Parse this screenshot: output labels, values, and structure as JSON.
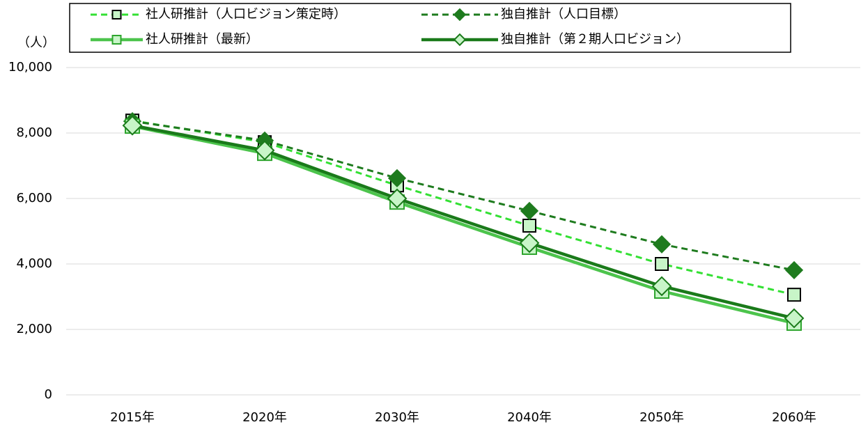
{
  "chart_data": {
    "type": "line",
    "y_label": "（人）",
    "categories": [
      "2015年",
      "2020年",
      "2030年",
      "2040年",
      "2050年",
      "2060年"
    ],
    "series": [
      {
        "name": "社人研推計（人口ビジョン策定時）",
        "color": "#33e033",
        "dash": true,
        "marker": "square",
        "marker_fill": "#c8f5c8",
        "marker_stroke": "#000000",
        "values": [
          8380,
          7720,
          6400,
          5170,
          4000,
          3060
        ]
      },
      {
        "name": "独自推計（人口目標）",
        "color": "#1e7b1e",
        "dash": true,
        "marker": "diamond",
        "marker_fill": "#1e7b1e",
        "marker_stroke": "#1e7b1e",
        "values": [
          8360,
          7770,
          6620,
          5620,
          4600,
          3810
        ]
      },
      {
        "name": "社人研推計（最新）",
        "color": "#4cc44c",
        "dash": false,
        "marker": "square",
        "marker_fill": "#c8f5c8",
        "marker_stroke": "#2ea52e",
        "values": [
          8210,
          7380,
          5890,
          4510,
          3170,
          2190
        ]
      },
      {
        "name": "独自推計（第２期人口ビジョン）",
        "color": "#1a7a1a",
        "dash": false,
        "marker": "diamond",
        "marker_fill": "#c8f5c8",
        "marker_stroke": "#1a7a1a",
        "values": [
          8230,
          7470,
          6000,
          4640,
          3320,
          2340
        ]
      }
    ],
    "ylim": [
      0,
      10000
    ],
    "yticks": [
      0,
      {
        "value": 2000,
        "label": "2,000"
      },
      {
        "value": 4000,
        "label": "4,000"
      },
      {
        "value": 6000,
        "label": "6,000"
      },
      {
        "value": 8000,
        "label": "8,000"
      },
      {
        "value": 10000,
        "label": "10,000"
      }
    ],
    "grid": true
  }
}
